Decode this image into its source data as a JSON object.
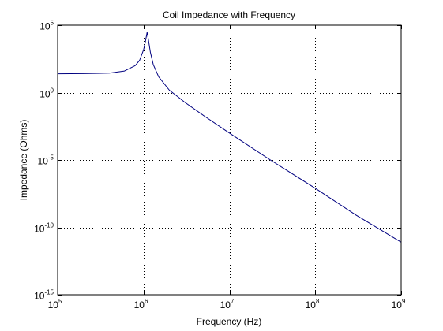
{
  "chart_data": {
    "type": "line",
    "title": "Coil Impedance with Frequency",
    "xlabel": "Frequency (Hz)",
    "ylabel": "Impedance (Ohms)",
    "x_scale": "log",
    "y_scale": "log",
    "xlim": [
      100000,
      1000000000
    ],
    "ylim": [
      1e-15,
      100000
    ],
    "x_ticks": [
      {
        "base": "10",
        "exp": "5",
        "value": 100000
      },
      {
        "base": "10",
        "exp": "6",
        "value": 1000000
      },
      {
        "base": "10",
        "exp": "7",
        "value": 10000000
      },
      {
        "base": "10",
        "exp": "8",
        "value": 100000000
      },
      {
        "base": "10",
        "exp": "9",
        "value": 1000000000
      }
    ],
    "y_ticks": [
      {
        "base": "10",
        "exp": "5",
        "value": 100000
      },
      {
        "base": "10",
        "exp": "0",
        "value": 1
      },
      {
        "base": "10",
        "exp": "-5",
        "value": 1e-05
      },
      {
        "base": "10",
        "exp": "-10",
        "value": 1e-10
      },
      {
        "base": "10",
        "exp": "-15",
        "value": 1e-15
      }
    ],
    "grid": true,
    "series": [
      {
        "color": "#000080",
        "x": [
          100000,
          200000,
          400000,
          600000,
          800000,
          900000,
          1000000,
          1050000,
          1100000,
          1130000,
          1200000,
          1300000,
          1500000,
          2000000,
          2500000,
          3000000,
          5000000,
          10000000,
          30000000,
          100000000,
          300000000,
          1000000000
        ],
        "y": [
          25,
          25.5,
          28,
          40,
          100,
          250,
          1500,
          6000,
          30000,
          12000,
          1000,
          120,
          15,
          1.5,
          0.5,
          0.2,
          0.02,
          0.001,
          1e-05,
          8e-08,
          8e-10,
          8e-12
        ]
      }
    ]
  }
}
